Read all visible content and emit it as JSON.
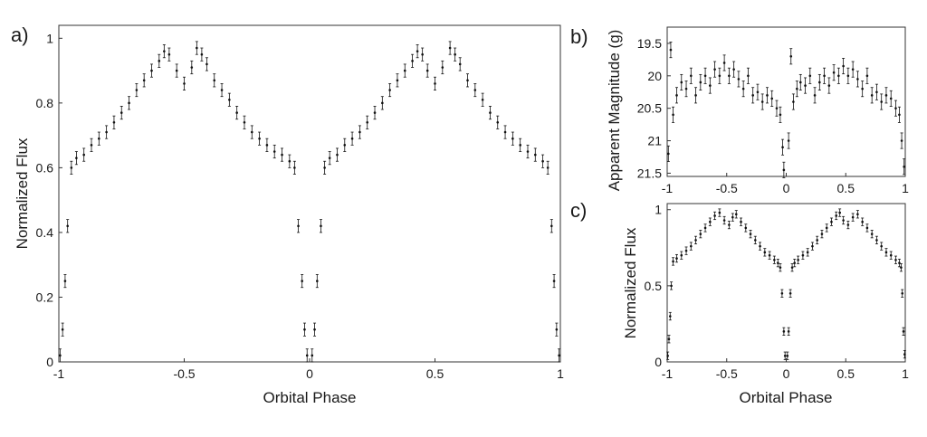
{
  "panel_labels": {
    "a": "a)",
    "b": "b)",
    "c": "c)"
  },
  "chart_data": [
    {
      "id": "a",
      "type": "scatter",
      "xlabel": "Orbital Phase",
      "ylabel": "Normalized Flux",
      "xlim": [
        -1,
        1
      ],
      "ylim": [
        0,
        1.04
      ],
      "xticks": [
        -1,
        -0.5,
        0,
        0.5,
        1
      ],
      "xticklabels": [
        "-1",
        "-0.5",
        "0",
        "0.5",
        "1"
      ],
      "yticks": [
        0,
        0.2,
        0.4,
        0.6,
        0.8,
        1
      ],
      "yticklabels": [
        "0",
        "0.2",
        "0.4",
        "0.6",
        "0.8",
        "1"
      ],
      "yreverse": false,
      "error_bars": true,
      "x": [
        -0.995,
        -0.985,
        -0.975,
        -0.965,
        -0.95,
        -0.93,
        -0.9,
        -0.87,
        -0.84,
        -0.81,
        -0.78,
        -0.75,
        -0.72,
        -0.69,
        -0.66,
        -0.63,
        -0.6,
        -0.58,
        -0.56,
        -0.53,
        -0.5,
        -0.47,
        -0.45,
        -0.43,
        -0.41,
        -0.38,
        -0.35,
        -0.32,
        -0.29,
        -0.26,
        -0.23,
        -0.2,
        -0.17,
        -0.14,
        -0.11,
        -0.08,
        -0.06,
        -0.045,
        -0.03,
        -0.02,
        -0.01,
        0.01,
        0.02,
        0.03,
        0.045,
        0.06,
        0.08,
        0.11,
        0.14,
        0.17,
        0.2,
        0.23,
        0.26,
        0.29,
        0.32,
        0.35,
        0.38,
        0.41,
        0.43,
        0.45,
        0.47,
        0.5,
        0.53,
        0.56,
        0.58,
        0.6,
        0.63,
        0.66,
        0.69,
        0.72,
        0.75,
        0.78,
        0.81,
        0.84,
        0.87,
        0.9,
        0.93,
        0.95,
        0.965,
        0.975,
        0.985,
        0.995
      ],
      "y": [
        0.02,
        0.1,
        0.25,
        0.42,
        0.6,
        0.63,
        0.64,
        0.67,
        0.69,
        0.71,
        0.74,
        0.77,
        0.8,
        0.84,
        0.87,
        0.9,
        0.93,
        0.96,
        0.95,
        0.9,
        0.86,
        0.91,
        0.97,
        0.95,
        0.92,
        0.87,
        0.84,
        0.81,
        0.77,
        0.74,
        0.71,
        0.69,
        0.67,
        0.65,
        0.64,
        0.62,
        0.6,
        0.42,
        0.25,
        0.1,
        0.02,
        0.02,
        0.1,
        0.25,
        0.42,
        0.6,
        0.63,
        0.64,
        0.67,
        0.69,
        0.71,
        0.74,
        0.77,
        0.8,
        0.84,
        0.87,
        0.9,
        0.93,
        0.96,
        0.95,
        0.9,
        0.86,
        0.91,
        0.97,
        0.95,
        0.92,
        0.87,
        0.84,
        0.81,
        0.77,
        0.74,
        0.71,
        0.69,
        0.67,
        0.65,
        0.64,
        0.62,
        0.6,
        0.42,
        0.25,
        0.1,
        0.02
      ],
      "yerr": 0.02
    },
    {
      "id": "b",
      "type": "scatter",
      "xlabel": "",
      "ylabel": "Apparent Magnitude (g)",
      "xlim": [
        -1,
        1
      ],
      "ylim": [
        19.25,
        21.55
      ],
      "xticks": [
        -1,
        -0.5,
        0,
        0.5,
        1
      ],
      "xticklabels": [
        "-1",
        "-0.5",
        "0",
        "0.5",
        "1"
      ],
      "yticks": [
        19.5,
        20,
        20.5,
        21,
        21.5
      ],
      "yticklabels": [
        "19.5",
        "20",
        "20.5",
        "21",
        "21.5"
      ],
      "yreverse": true,
      "error_bars": true,
      "x": [
        -0.99,
        -0.97,
        -0.95,
        -0.92,
        -0.88,
        -0.84,
        -0.8,
        -0.76,
        -0.72,
        -0.68,
        -0.64,
        -0.6,
        -0.56,
        -0.52,
        -0.48,
        -0.44,
        -0.4,
        -0.36,
        -0.32,
        -0.28,
        -0.24,
        -0.2,
        -0.16,
        -0.12,
        -0.08,
        -0.05,
        -0.03,
        -0.02,
        0.02,
        0.04,
        0.06,
        0.09,
        0.12,
        0.16,
        0.2,
        0.24,
        0.28,
        0.32,
        0.36,
        0.4,
        0.44,
        0.48,
        0.52,
        0.56,
        0.6,
        0.64,
        0.68,
        0.72,
        0.76,
        0.8,
        0.84,
        0.88,
        0.92,
        0.95,
        0.97,
        0.99
      ],
      "y": [
        21.2,
        19.6,
        20.6,
        20.3,
        20.1,
        20.2,
        20.0,
        20.3,
        20.1,
        20.0,
        20.15,
        19.9,
        20.0,
        19.8,
        20.0,
        19.9,
        20.05,
        20.2,
        20.0,
        20.3,
        20.25,
        20.4,
        20.3,
        20.35,
        20.5,
        20.6,
        21.1,
        21.45,
        21.0,
        19.7,
        20.4,
        20.2,
        20.1,
        20.15,
        20.0,
        20.3,
        20.1,
        20.0,
        20.15,
        19.95,
        20.0,
        19.85,
        20.0,
        19.9,
        20.05,
        20.2,
        20.0,
        20.3,
        20.25,
        20.4,
        20.3,
        20.35,
        20.5,
        20.6,
        21.0,
        21.4
      ],
      "yerr": 0.12
    },
    {
      "id": "c",
      "type": "scatter",
      "xlabel": "Orbital Phase",
      "ylabel": "Normalized Flux",
      "xlim": [
        -1,
        1
      ],
      "ylim": [
        0,
        1.04
      ],
      "xticks": [
        -1,
        -0.5,
        0,
        0.5,
        1
      ],
      "xticklabels": [
        "-1",
        "-0.5",
        "0",
        "0.5",
        "1"
      ],
      "yticks": [
        0,
        0.5,
        1
      ],
      "yticklabels": [
        "0",
        "0.5",
        "1"
      ],
      "yreverse": false,
      "error_bars": true,
      "x": [
        -0.995,
        -0.985,
        -0.975,
        -0.965,
        -0.95,
        -0.92,
        -0.88,
        -0.84,
        -0.8,
        -0.76,
        -0.72,
        -0.68,
        -0.64,
        -0.6,
        -0.56,
        -0.52,
        -0.48,
        -0.45,
        -0.42,
        -0.38,
        -0.34,
        -0.3,
        -0.26,
        -0.22,
        -0.18,
        -0.14,
        -0.1,
        -0.07,
        -0.05,
        -0.035,
        -0.02,
        -0.01,
        0.01,
        0.02,
        0.035,
        0.05,
        0.07,
        0.1,
        0.14,
        0.18,
        0.22,
        0.26,
        0.3,
        0.34,
        0.38,
        0.42,
        0.45,
        0.48,
        0.52,
        0.56,
        0.6,
        0.64,
        0.68,
        0.72,
        0.76,
        0.8,
        0.84,
        0.88,
        0.92,
        0.95,
        0.965,
        0.975,
        0.985,
        0.995
      ],
      "y": [
        0.04,
        0.15,
        0.3,
        0.5,
        0.66,
        0.68,
        0.7,
        0.73,
        0.76,
        0.8,
        0.84,
        0.88,
        0.92,
        0.96,
        0.98,
        0.93,
        0.9,
        0.95,
        0.97,
        0.92,
        0.88,
        0.84,
        0.8,
        0.76,
        0.72,
        0.7,
        0.67,
        0.65,
        0.62,
        0.45,
        0.2,
        0.04,
        0.04,
        0.2,
        0.45,
        0.62,
        0.65,
        0.67,
        0.7,
        0.72,
        0.76,
        0.8,
        0.84,
        0.88,
        0.92,
        0.96,
        0.98,
        0.93,
        0.9,
        0.95,
        0.97,
        0.92,
        0.88,
        0.84,
        0.8,
        0.76,
        0.72,
        0.7,
        0.67,
        0.65,
        0.62,
        0.45,
        0.2,
        0.05
      ],
      "yerr": 0.025
    }
  ]
}
